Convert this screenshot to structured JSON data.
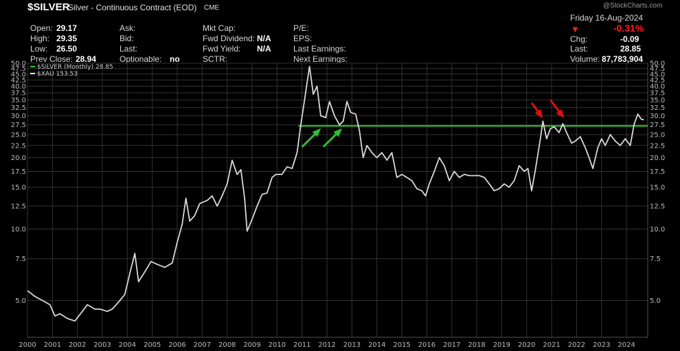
{
  "header": {
    "symbol": "$SILVER",
    "description": "Silver - Continuous Contract (EOD)",
    "exchange": "CME",
    "watermark": "@StockCharts.com",
    "date": "Friday 16-Aug-2024",
    "change_pct": "-0.31%",
    "down_arrow": "▼",
    "fields": {
      "open": {
        "label": "Open:",
        "value": "29.17"
      },
      "high": {
        "label": "High:",
        "value": "29.35"
      },
      "low": {
        "label": "Low:",
        "value": "26.50"
      },
      "prev_close": {
        "label": "Prev Close:",
        "value": "28.94"
      },
      "ask": {
        "label": "Ask:"
      },
      "bid": {
        "label": "Bid:"
      },
      "last_col2": {
        "label": "Last:"
      },
      "optionable": {
        "label": "Optionable:",
        "value": "no"
      },
      "mkt_cap": {
        "label": "Mkt Cap:"
      },
      "fwd_dividend": {
        "label": "Fwd Dividend:",
        "value": "N/A"
      },
      "fwd_yield": {
        "label": "Fwd Yield:",
        "value": "N/A"
      },
      "sctr": {
        "label": "SCTR:"
      },
      "pe": {
        "label": "P/E:"
      },
      "eps": {
        "label": "EPS:"
      },
      "last_earnings": {
        "label": "Last Earnings:"
      },
      "next_earnings": {
        "label": "Next Earnings:"
      },
      "chg": {
        "label": "Chg:",
        "value": "-0.09"
      },
      "last": {
        "label": "Last:",
        "value": "28.85"
      },
      "volume": {
        "label": "Volume:",
        "value": "87,783,904"
      }
    }
  },
  "colors": {
    "background": "#000000",
    "price_line": "#d9d9d9",
    "resistance_line": "#33cc33",
    "green_arrows": "#33bb33",
    "red_arrows": "#e01010",
    "grid": "#333333",
    "change_negative": "#ff2020"
  },
  "chart_data": {
    "type": "line",
    "scale": "log",
    "legend_position": "top-left",
    "grid": true,
    "legend": [
      {
        "label": "$SILVER (Monthly) 28.85",
        "color": "#33cc33"
      },
      {
        "label": "$XAU 153.53",
        "color": "#ffffff"
      }
    ],
    "ylim": [
      3.5,
      50
    ],
    "y_ticks": [
      50.0,
      47.5,
      45.0,
      42.5,
      40.0,
      37.5,
      35.0,
      32.5,
      30.0,
      27.5,
      25.0,
      22.5,
      20.0,
      17.5,
      15.0,
      12.5,
      10.0,
      7.5,
      5.0
    ],
    "y_tick_labels": [
      "50.0",
      "47.5",
      "45.0",
      "42.5",
      "40.0",
      "37.5",
      "35.0",
      "32.5",
      "30.0",
      "27.5",
      "25.0",
      "22.5",
      "20.0",
      "17.5",
      "15.0",
      "12.5",
      "10.0",
      "7.5",
      "5.0"
    ],
    "x_ticks": [
      2000,
      2001,
      2002,
      2003,
      2004,
      2005,
      2006,
      2007,
      2008,
      2009,
      2010,
      2011,
      2012,
      2013,
      2014,
      2015,
      2016,
      2017,
      2018,
      2019,
      2020,
      2021,
      2022,
      2023,
      2024
    ],
    "x_tick_labels": [
      "2000",
      "2001",
      "2002",
      "2003",
      "2004",
      "2005",
      "2006",
      "2007",
      "2008",
      "2009",
      "2010",
      "2011",
      "2012",
      "2013",
      "2014",
      "2015",
      "2016",
      "2017",
      "2018",
      "2019",
      "2020",
      "2021",
      "2022",
      "2023",
      "2024"
    ],
    "xlim": [
      2000,
      2024.85
    ],
    "series": [
      {
        "name": "$XAU 153.53",
        "points": [
          [
            2000.0,
            5.5
          ],
          [
            2000.3,
            5.2
          ],
          [
            2000.6,
            5.0
          ],
          [
            2000.9,
            4.8
          ],
          [
            2001.1,
            4.3
          ],
          [
            2001.3,
            4.4
          ],
          [
            2001.6,
            4.2
          ],
          [
            2001.9,
            4.1
          ],
          [
            2002.2,
            4.5
          ],
          [
            2002.4,
            4.8
          ],
          [
            2002.7,
            4.6
          ],
          [
            2002.9,
            4.6
          ],
          [
            2003.2,
            4.5
          ],
          [
            2003.4,
            4.6
          ],
          [
            2003.7,
            5.0
          ],
          [
            2003.9,
            5.3
          ],
          [
            2004.1,
            6.5
          ],
          [
            2004.3,
            7.9
          ],
          [
            2004.45,
            6.0
          ],
          [
            2004.7,
            6.6
          ],
          [
            2004.95,
            7.3
          ],
          [
            2005.2,
            7.1
          ],
          [
            2005.5,
            6.9
          ],
          [
            2005.8,
            7.2
          ],
          [
            2006.0,
            8.8
          ],
          [
            2006.2,
            10.5
          ],
          [
            2006.35,
            13.5
          ],
          [
            2006.5,
            10.8
          ],
          [
            2006.7,
            11.4
          ],
          [
            2006.9,
            12.8
          ],
          [
            2007.2,
            13.2
          ],
          [
            2007.4,
            13.8
          ],
          [
            2007.6,
            12.5
          ],
          [
            2007.8,
            13.8
          ],
          [
            2008.0,
            15.5
          ],
          [
            2008.2,
            19.5
          ],
          [
            2008.4,
            17.0
          ],
          [
            2008.55,
            17.8
          ],
          [
            2008.7,
            13.5
          ],
          [
            2008.8,
            9.8
          ],
          [
            2009.0,
            11.0
          ],
          [
            2009.2,
            12.5
          ],
          [
            2009.4,
            14.0
          ],
          [
            2009.6,
            14.2
          ],
          [
            2009.8,
            16.5
          ],
          [
            2009.95,
            17.0
          ],
          [
            2010.2,
            17.0
          ],
          [
            2010.4,
            18.3
          ],
          [
            2010.6,
            18.0
          ],
          [
            2010.8,
            21.0
          ],
          [
            2010.95,
            27.5
          ],
          [
            2011.1,
            35.0
          ],
          [
            2011.3,
            48.5
          ],
          [
            2011.45,
            37.0
          ],
          [
            2011.6,
            40.0
          ],
          [
            2011.75,
            30.0
          ],
          [
            2011.95,
            29.5
          ],
          [
            2012.1,
            34.5
          ],
          [
            2012.3,
            30.0
          ],
          [
            2012.5,
            27.5
          ],
          [
            2012.65,
            28.5
          ],
          [
            2012.8,
            34.5
          ],
          [
            2012.95,
            31.0
          ],
          [
            2013.15,
            30.5
          ],
          [
            2013.3,
            26.0
          ],
          [
            2013.45,
            20.0
          ],
          [
            2013.6,
            22.5
          ],
          [
            2013.8,
            21.0
          ],
          [
            2014.0,
            20.0
          ],
          [
            2014.2,
            21.0
          ],
          [
            2014.4,
            19.5
          ],
          [
            2014.6,
            21.0
          ],
          [
            2014.8,
            16.5
          ],
          [
            2015.0,
            17.0
          ],
          [
            2015.2,
            16.5
          ],
          [
            2015.4,
            16.0
          ],
          [
            2015.6,
            14.8
          ],
          [
            2015.8,
            14.5
          ],
          [
            2015.95,
            13.8
          ],
          [
            2016.1,
            15.5
          ],
          [
            2016.3,
            17.5
          ],
          [
            2016.5,
            20.0
          ],
          [
            2016.7,
            18.5
          ],
          [
            2016.9,
            16.0
          ],
          [
            2017.1,
            17.5
          ],
          [
            2017.3,
            16.5
          ],
          [
            2017.5,
            17.0
          ],
          [
            2017.7,
            16.8
          ],
          [
            2017.9,
            16.8
          ],
          [
            2018.1,
            16.8
          ],
          [
            2018.3,
            16.5
          ],
          [
            2018.5,
            15.5
          ],
          [
            2018.7,
            14.5
          ],
          [
            2018.9,
            14.8
          ],
          [
            2019.1,
            15.5
          ],
          [
            2019.3,
            15.0
          ],
          [
            2019.5,
            16.0
          ],
          [
            2019.7,
            18.5
          ],
          [
            2019.9,
            17.5
          ],
          [
            2020.05,
            18.0
          ],
          [
            2020.2,
            14.5
          ],
          [
            2020.35,
            17.8
          ],
          [
            2020.55,
            24.0
          ],
          [
            2020.65,
            28.5
          ],
          [
            2020.8,
            24.0
          ],
          [
            2020.95,
            26.5
          ],
          [
            2021.1,
            27.0
          ],
          [
            2021.3,
            25.5
          ],
          [
            2021.45,
            27.8
          ],
          [
            2021.6,
            25.5
          ],
          [
            2021.8,
            23.0
          ],
          [
            2021.95,
            23.5
          ],
          [
            2022.15,
            24.5
          ],
          [
            2022.35,
            22.0
          ],
          [
            2022.5,
            20.0
          ],
          [
            2022.65,
            18.0
          ],
          [
            2022.85,
            22.0
          ],
          [
            2023.0,
            24.0
          ],
          [
            2023.15,
            22.5
          ],
          [
            2023.35,
            25.0
          ],
          [
            2023.55,
            23.5
          ],
          [
            2023.75,
            22.5
          ],
          [
            2023.95,
            24.0
          ],
          [
            2024.15,
            22.5
          ],
          [
            2024.3,
            27.5
          ],
          [
            2024.45,
            30.5
          ],
          [
            2024.6,
            29.0
          ],
          [
            2024.7,
            28.85
          ]
        ]
      },
      {
        "name": "$SILVER (Monthly) 28.85",
        "points": [
          [
            2010.85,
            27.2
          ],
          [
            2024.85,
            27.2
          ]
        ]
      }
    ],
    "annotations": [
      {
        "type": "arrow",
        "color": "green",
        "from": [
          2011.0,
          22.2
        ],
        "to": [
          2011.7,
          26.2
        ]
      },
      {
        "type": "arrow",
        "color": "green",
        "from": [
          2011.85,
          22.2
        ],
        "to": [
          2012.55,
          26.2
        ]
      },
      {
        "type": "arrow",
        "color": "red",
        "from": [
          2020.2,
          34.0
        ],
        "to": [
          2020.6,
          29.8
        ]
      },
      {
        "type": "arrow",
        "color": "red",
        "from": [
          2020.95,
          35.0
        ],
        "to": [
          2021.45,
          29.8
        ]
      }
    ]
  }
}
